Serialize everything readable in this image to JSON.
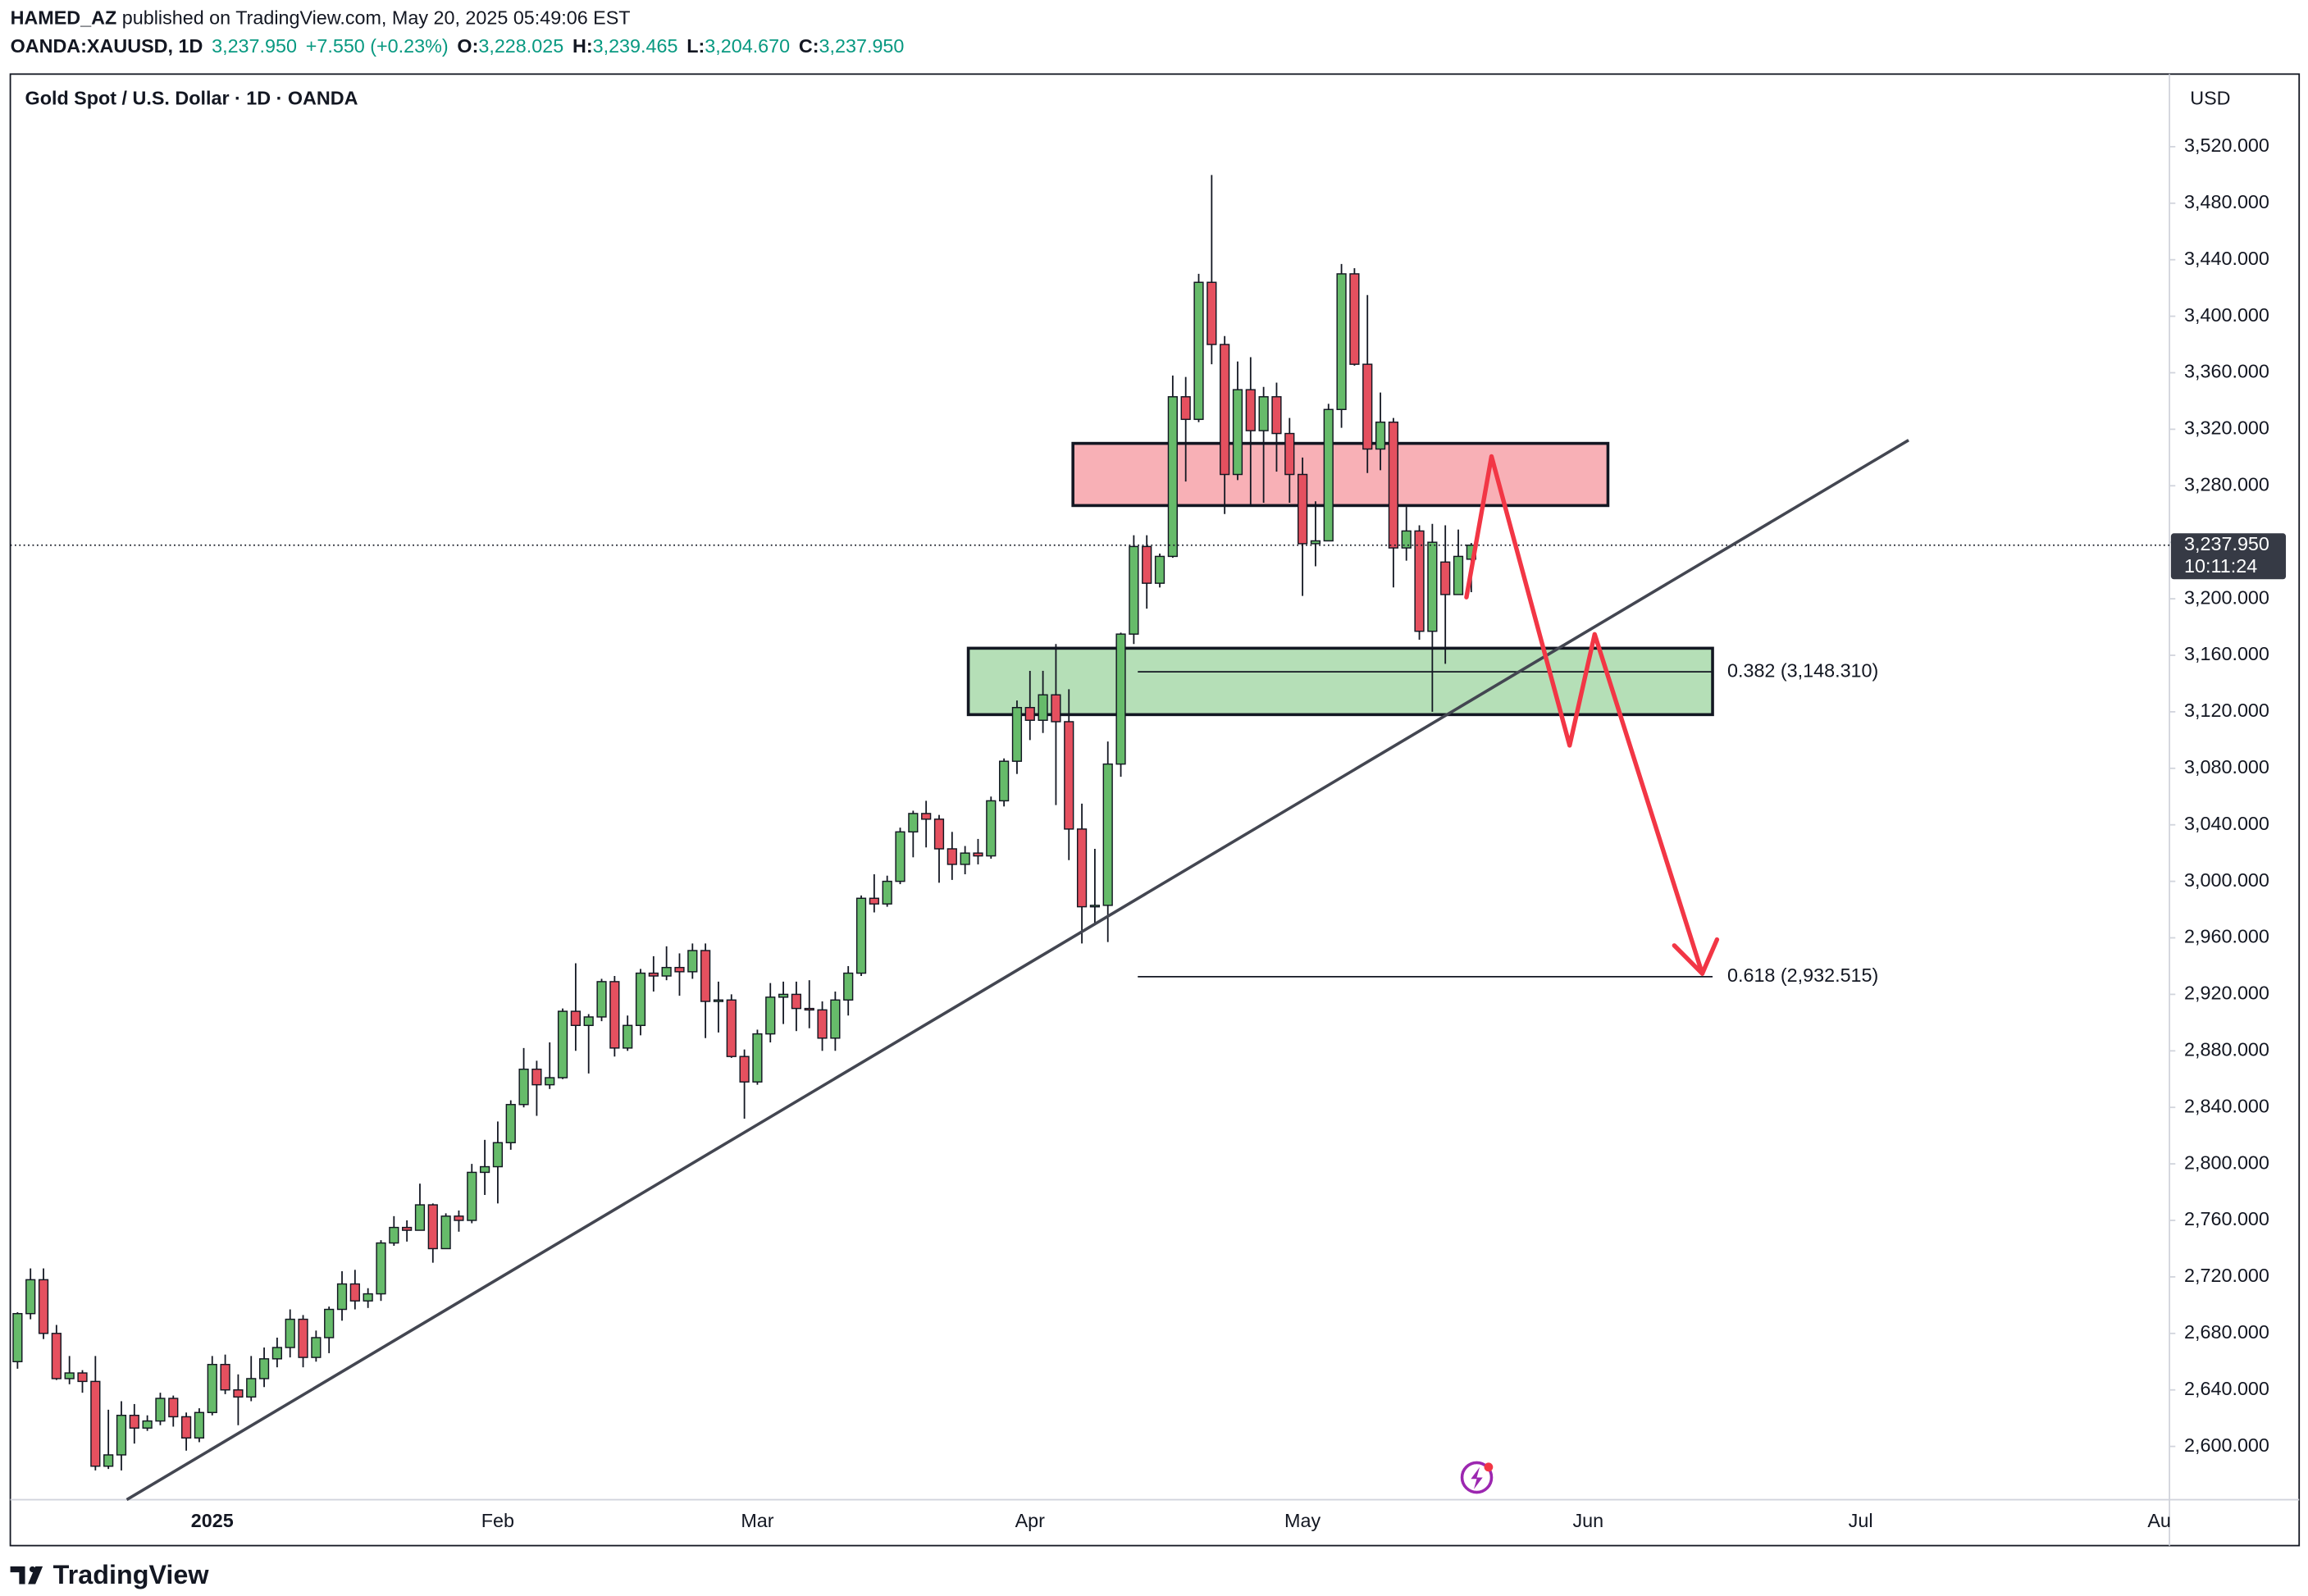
{
  "header": {
    "author": "HAMED_AZ",
    "published": " published on TradingView.com, May 20, 2025 05:49:06 EST",
    "symbol": "OANDA:XAUUSD, 1D",
    "last": "3,237.950",
    "change": "+7.550 (+0.23%)",
    "ohlc": [
      {
        "label": "O:",
        "value": "3,228.025"
      },
      {
        "label": "H:",
        "value": "3,239.465"
      },
      {
        "label": "L:",
        "value": "3,204.670"
      },
      {
        "label": "C:",
        "value": "3,237.950"
      }
    ]
  },
  "footer": {
    "brand": "TradingView"
  },
  "chart_data": {
    "type": "candlestick",
    "title": "Gold Spot / U.S. Dollar · 1D · OANDA",
    "currency": "USD",
    "up_color": "#66bb6a",
    "down_color": "#e5505f",
    "grid": false,
    "categories": [
      null,
      null,
      null,
      null,
      null,
      null,
      null,
      null,
      null,
      null,
      null,
      null,
      null,
      null,
      null,
      "2025",
      null,
      null,
      null,
      null,
      null,
      null,
      null,
      null,
      null,
      null,
      null,
      null,
      null,
      null,
      null,
      null,
      null,
      null,
      null,
      null,
      null,
      "Feb",
      null,
      null,
      null,
      null,
      null,
      null,
      null,
      null,
      null,
      null,
      null,
      null,
      null,
      null,
      null,
      null,
      null,
      null,
      null,
      "Mar",
      null,
      null,
      null,
      null,
      null,
      null,
      null,
      null,
      null,
      null,
      null,
      null,
      null,
      null,
      null,
      null,
      null,
      null,
      null,
      null,
      "Apr",
      null,
      null,
      null,
      null,
      null,
      null,
      null,
      null,
      null,
      null,
      null,
      null,
      null,
      null,
      null,
      null,
      null,
      null,
      null,
      null,
      "May",
      null,
      null,
      null,
      null,
      null,
      null,
      null,
      null,
      null,
      null,
      null,
      null,
      null,
      null,
      null,
      null,
      null,
      null,
      null,
      null,
      null,
      "Jun",
      null,
      null,
      null,
      null,
      null,
      null,
      null,
      null,
      null,
      null,
      null,
      null,
      null,
      null,
      null,
      null,
      null,
      null,
      null,
      null,
      "Jul",
      null,
      null,
      null,
      null,
      null,
      null,
      null,
      null,
      null,
      null,
      null,
      null,
      null,
      null,
      null,
      null,
      null,
      null,
      null,
      null,
      null,
      null,
      "Au"
    ],
    "open": [
      2660,
      2694,
      2718,
      2680,
      2648,
      2652,
      2646,
      2586,
      2594,
      2622,
      2613,
      2618,
      2634,
      2621,
      2606,
      2624,
      2658,
      2640,
      2635,
      2648,
      2662,
      2670,
      2690,
      2663,
      2677,
      2697,
      2715,
      2703,
      2708,
      2744,
      2755,
      2753,
      2771,
      2740,
      2763,
      2760,
      2794,
      2798,
      2815,
      2842,
      2867,
      2856,
      2861,
      2908,
      2898,
      2904,
      2929,
      2882,
      2898,
      2935,
      2933,
      2939,
      2936,
      2951,
      2915,
      2916,
      2876,
      2858,
      2892,
      2918,
      2920,
      2910,
      2909,
      2889,
      2916,
      2935,
      2988,
      2984,
      3000,
      3035,
      3048,
      3044,
      3023,
      3012,
      3020,
      3018,
      3057,
      3085,
      3123,
      3114,
      3132,
      3113,
      3037,
      2982,
      2983,
      3083,
      3175,
      3237,
      3211,
      3230,
      3343,
      3327,
      3424,
      3380,
      3288,
      3348,
      3319,
      3343,
      3317,
      3288,
      3239,
      3241,
      3334,
      3430,
      3366,
      3306,
      3325,
      3236,
      3248,
      3177,
      3226,
      3203,
      3228.025,
      null,
      null,
      null,
      null,
      null,
      null,
      null,
      null,
      null,
      null,
      null,
      null,
      null,
      null,
      null,
      null,
      null,
      null,
      null,
      null,
      null,
      null,
      null,
      null,
      null,
      null,
      null,
      null,
      null,
      null,
      null,
      null,
      null,
      null,
      null,
      null,
      null,
      null,
      null,
      null,
      null,
      null,
      null,
      null,
      null,
      null,
      null,
      null,
      null,
      null,
      null,
      null,
      null
    ],
    "high": [
      2695,
      2726,
      2726,
      2686,
      2664,
      2654,
      2664,
      2626,
      2632,
      2630,
      2622,
      2638,
      2636,
      2624,
      2627,
      2664,
      2665,
      2651,
      2664,
      2670,
      2677,
      2697,
      2693,
      2682,
      2699,
      2724,
      2725,
      2712,
      2746,
      2763,
      2760,
      2786,
      2772,
      2765,
      2767,
      2800,
      2817,
      2830,
      2845,
      2882,
      2873,
      2886,
      2910,
      2942,
      2906,
      2931,
      2933,
      2905,
      2938,
      2947,
      2954,
      2949,
      2956,
      2956,
      2929,
      2920,
      2881,
      2895,
      2928,
      2929,
      2929,
      2930,
      2915,
      2922,
      2940,
      2990,
      3005,
      3004,
      3038,
      3050,
      3057,
      3047,
      3035,
      3025,
      3030,
      3060,
      3087,
      3128,
      3149,
      3149,
      3168,
      3136,
      3055,
      3023,
      3099,
      3176,
      3245,
      3245,
      3232,
      3358,
      3357,
      3430,
      3500,
      3386,
      3368,
      3371,
      3350,
      3353,
      3328,
      3300,
      3269,
      3338,
      3437,
      3434,
      3415,
      3346,
      3328,
      3265,
      3252,
      3253,
      3252,
      3249,
      3239.465,
      null,
      null,
      null,
      null,
      null,
      null,
      null,
      null,
      null,
      null,
      null,
      null,
      null,
      null,
      null,
      null,
      null,
      null,
      null,
      null,
      null,
      null,
      null,
      null,
      null,
      null,
      null,
      null,
      null,
      null,
      null,
      null,
      null,
      null,
      null,
      null,
      null,
      null,
      null,
      null,
      null,
      null,
      null,
      null,
      null,
      null,
      null,
      null,
      null,
      null,
      null,
      null,
      null
    ],
    "low": [
      2655,
      2690,
      2676,
      2647,
      2644,
      2638,
      2583,
      2584,
      2583,
      2602,
      2611,
      2615,
      2614,
      2597,
      2603,
      2622,
      2637,
      2615,
      2632,
      2642,
      2656,
      2663,
      2656,
      2660,
      2666,
      2689,
      2697,
      2698,
      2703,
      2742,
      2745,
      2753,
      2730,
      2740,
      2752,
      2758,
      2778,
      2772,
      2810,
      2840,
      2834,
      2853,
      2860,
      2880,
      2864,
      2901,
      2876,
      2880,
      2891,
      2922,
      2930,
      2919,
      2931,
      2889,
      2893,
      2875,
      2832,
      2856,
      2886,
      2899,
      2894,
      2896,
      2880,
      2880,
      2905,
      2933,
      2978,
      2982,
      2998,
      3017,
      3024,
      2999,
      3001,
      3005,
      3012,
      3016,
      3053,
      3076,
      3100,
      3105,
      3054,
      3015,
      2956,
      2970,
      2957,
      3074,
      3168,
      3193,
      3208,
      3229,
      3283,
      3325,
      3366,
      3260,
      3284,
      3266,
      3268,
      3290,
      3268,
      3202,
      3223,
      3241,
      3321,
      3365,
      3289,
      3291,
      3208,
      3227,
      3171,
      3120,
      3154,
      3203,
      3204.67,
      null,
      null,
      null,
      null,
      null,
      null,
      null,
      null,
      null,
      null,
      null,
      null,
      null,
      null,
      null,
      null,
      null,
      null,
      null,
      null,
      null,
      null,
      null,
      null,
      null,
      null,
      null,
      null,
      null,
      null,
      null,
      null,
      null,
      null,
      null,
      null,
      null,
      null,
      null,
      null,
      null,
      null,
      null,
      null,
      null,
      null,
      null,
      null,
      null,
      null,
      null,
      null,
      null
    ],
    "close": [
      2694,
      2718,
      2680,
      2648,
      2652,
      2646,
      2586,
      2594,
      2622,
      2613,
      2618,
      2634,
      2621,
      2606,
      2624,
      2658,
      2640,
      2635,
      2648,
      2662,
      2670,
      2690,
      2663,
      2677,
      2697,
      2715,
      2703,
      2708,
      2744,
      2755,
      2753,
      2771,
      2740,
      2763,
      2760,
      2794,
      2798,
      2815,
      2842,
      2867,
      2856,
      2861,
      2908,
      2898,
      2904,
      2929,
      2882,
      2898,
      2935,
      2933,
      2939,
      2936,
      2951,
      2915,
      2916,
      2876,
      2858,
      2892,
      2918,
      2920,
      2910,
      2909,
      2889,
      2916,
      2935,
      2988,
      2984,
      3000,
      3035,
      3048,
      3044,
      3023,
      3012,
      3020,
      3018,
      3057,
      3085,
      3123,
      3114,
      3132,
      3113,
      3037,
      2982,
      2983,
      3083,
      3175,
      3237,
      3211,
      3230,
      3343,
      3327,
      3424,
      3380,
      3288,
      3348,
      3319,
      3343,
      3317,
      3288,
      3239,
      3241,
      3334,
      3430,
      3366,
      3306,
      3325,
      3236,
      3248,
      3177,
      3240,
      3203,
      3230,
      3237.95,
      null,
      null,
      null,
      null,
      null,
      null,
      null,
      null,
      null,
      null,
      null,
      null,
      null,
      null,
      null,
      null,
      null,
      null,
      null,
      null,
      null,
      null,
      null,
      null,
      null,
      null,
      null,
      null,
      null,
      null,
      null,
      null,
      null,
      null,
      null,
      null,
      null,
      null,
      null,
      null,
      null,
      null,
      null,
      null,
      null,
      null,
      null,
      null,
      null,
      null,
      null,
      null,
      null
    ],
    "ylim": [
      2562.3,
      3569.3
    ],
    "yticks": [
      {
        "value": 2600,
        "label": "2,600.000"
      },
      {
        "value": 2640,
        "label": "2,640.000"
      },
      {
        "value": 2680,
        "label": "2,680.000"
      },
      {
        "value": 2720,
        "label": "2,720.000"
      },
      {
        "value": 2760,
        "label": "2,760.000"
      },
      {
        "value": 2800,
        "label": "2,800.000"
      },
      {
        "value": 2840,
        "label": "2,840.000"
      },
      {
        "value": 2880,
        "label": "2,880.000"
      },
      {
        "value": 2920,
        "label": "2,920.000"
      },
      {
        "value": 2960,
        "label": "2,960.000"
      },
      {
        "value": 3000,
        "label": "3,000.000"
      },
      {
        "value": 3040,
        "label": "3,040.000"
      },
      {
        "value": 3080,
        "label": "3,080.000"
      },
      {
        "value": 3120,
        "label": "3,120.000"
      },
      {
        "value": 3160,
        "label": "3,160.000"
      },
      {
        "value": 3200,
        "label": "3,200.000"
      },
      {
        "value": 3240,
        "label": "3,240.000"
      },
      {
        "value": 3280,
        "label": "3,280.000"
      },
      {
        "value": 3320,
        "label": "3,320.000"
      },
      {
        "value": 3360,
        "label": "3,360.000"
      },
      {
        "value": 3400,
        "label": "3,400.000"
      },
      {
        "value": 3440,
        "label": "3,440.000"
      },
      {
        "value": 3480,
        "label": "3,480.000"
      },
      {
        "value": 3520,
        "label": "3,520.000"
      }
    ],
    "last_price": {
      "value": 3237.95,
      "label": "3,237.950",
      "countdown": "10:11:24"
    },
    "zones": [
      {
        "low": 3266,
        "high": 3310,
        "color": "#f8b0b6"
      },
      {
        "low": 3118,
        "high": 3165,
        "color": "#b5dfb7"
      }
    ],
    "fib_levels": [
      {
        "value": 3148.31,
        "label": "0.382 (3,148.310)"
      },
      {
        "value": 2932.515,
        "label": "0.618 (2,932.515)"
      }
    ]
  }
}
